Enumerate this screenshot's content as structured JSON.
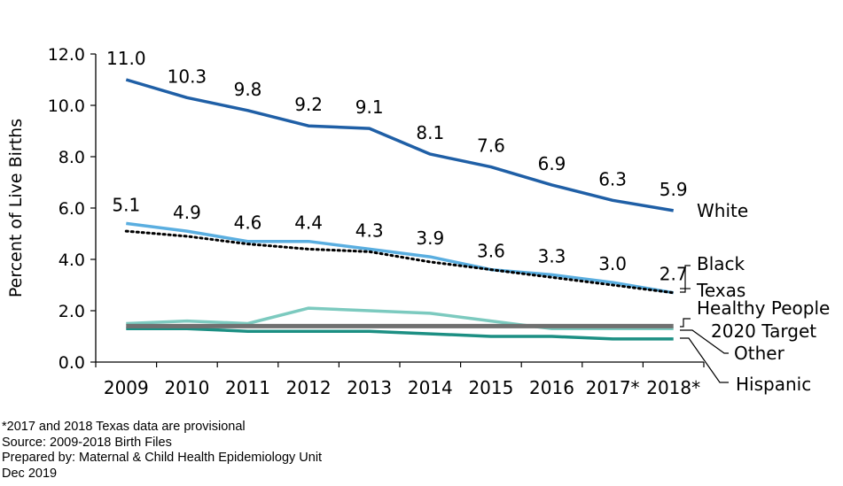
{
  "chart_data": {
    "type": "line",
    "categories": [
      "2009",
      "2010",
      "2011",
      "2012",
      "2013",
      "2014",
      "2015",
      "2016",
      "2017*",
      "2018*"
    ],
    "ylabel": "Percent of Live Births",
    "ylim": [
      0,
      12
    ],
    "yticks": [
      "0.0",
      "2.0",
      "4.0",
      "6.0",
      "8.0",
      "10.0",
      "12.0"
    ],
    "grid": false,
    "series": [
      {
        "name": "White",
        "color": "#1f5fa6",
        "style": "solid",
        "values": [
          11.0,
          10.3,
          9.8,
          9.2,
          9.1,
          8.1,
          7.6,
          6.9,
          6.3,
          5.9
        ],
        "labels": [
          "11.0",
          "10.3",
          "9.8",
          "9.2",
          "9.1",
          "8.1",
          "7.6",
          "6.9",
          "6.3",
          "5.9"
        ]
      },
      {
        "name": "Black",
        "color": "#5aaee0",
        "style": "solid",
        "values": [
          5.4,
          5.1,
          4.7,
          4.7,
          4.4,
          4.1,
          3.6,
          3.4,
          3.1,
          2.7
        ]
      },
      {
        "name": "Texas",
        "color": "#000000",
        "style": "dotted",
        "values": [
          5.1,
          4.9,
          4.6,
          4.4,
          4.3,
          3.9,
          3.6,
          3.3,
          3.0,
          2.7
        ],
        "labels": [
          "5.1",
          "4.9",
          "4.6",
          "4.4",
          "4.3",
          "3.9",
          "3.6",
          "3.3",
          "3.0",
          "2.7"
        ]
      },
      {
        "name": "Healthy People 2020 Target",
        "color": "#707070",
        "style": "solid",
        "values": [
          1.4,
          1.4,
          1.4,
          1.4,
          1.4,
          1.4,
          1.4,
          1.4,
          1.4,
          1.4
        ]
      },
      {
        "name": "Other",
        "color": "#7ccabf",
        "style": "solid",
        "values": [
          1.5,
          1.6,
          1.5,
          2.1,
          2.0,
          1.9,
          1.6,
          1.3,
          1.3,
          1.3
        ]
      },
      {
        "name": "Hispanic",
        "color": "#1c8f83",
        "style": "solid",
        "values": [
          1.3,
          1.3,
          1.2,
          1.2,
          1.2,
          1.1,
          1.0,
          1.0,
          0.9,
          0.9
        ]
      }
    ],
    "legend_labels": {
      "white": "White",
      "black": "Black",
      "texas": "Texas",
      "hp_line1": "Healthy People",
      "hp_line2": "2020 Target",
      "other": "Other",
      "hispanic": "Hispanic"
    }
  },
  "footer": {
    "note": "*2017 and 2018 Texas data are provisional",
    "source": "Source: 2009-2018 Birth Files",
    "prepared_by": "Prepared by: Maternal & Child Health Epidemiology Unit",
    "date": "Dec 2019"
  }
}
